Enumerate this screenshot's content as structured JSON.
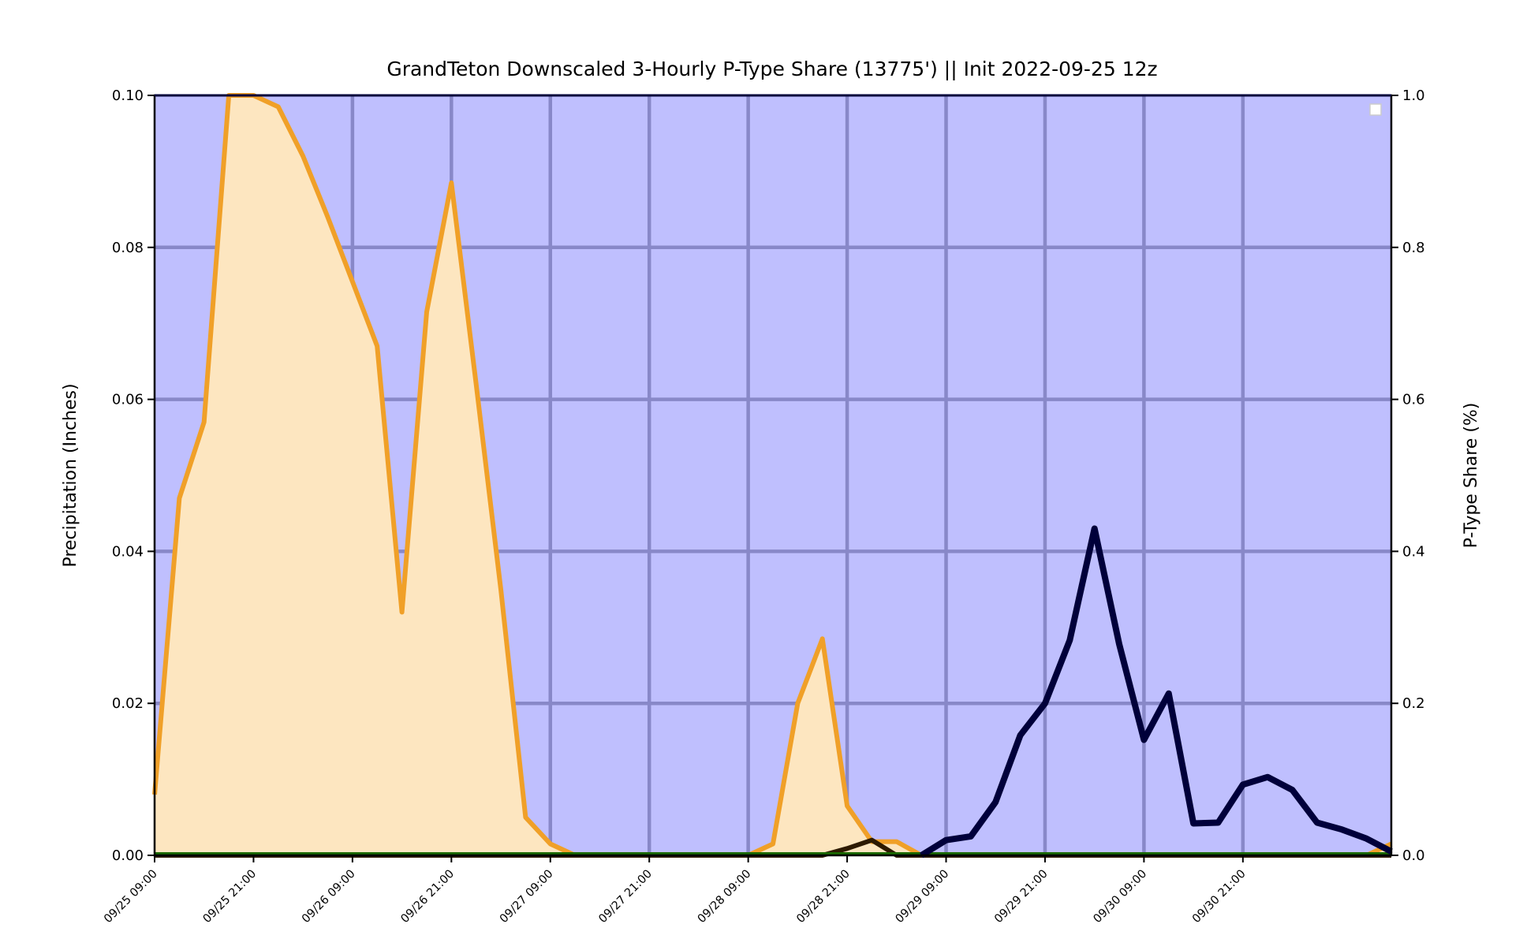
{
  "chart_data": {
    "type": "area",
    "title": "GrandTeton Downscaled 3-Hourly P-Type Share (13775') || Init 2022-09-25 12z",
    "ylabel": "Precipitation (Inches)",
    "y2label": "P-Type Share (%)",
    "ylim": [
      0,
      0.1
    ],
    "y2lim": [
      0,
      1.0
    ],
    "yticks": [
      "0.00",
      "0.02",
      "0.04",
      "0.06",
      "0.08",
      "0.10"
    ],
    "y2ticks": [
      "0.0",
      "0.2",
      "0.4",
      "0.6",
      "0.8",
      "1.0"
    ],
    "x_hours_step": 3,
    "x_start": "09/25 09:00",
    "x_end": "10/01 06:00",
    "xticks": [
      "09/25 09:00",
      "09/25 21:00",
      "09/26 09:00",
      "09/26 21:00",
      "09/27 09:00",
      "09/27 21:00",
      "09/28 09:00",
      "09/28 21:00",
      "09/29 09:00",
      "09/29 21:00",
      "09/30 09:00",
      "09/30 21:00"
    ],
    "grid": true,
    "legend": "top-right",
    "colors": {
      "background": "#bfbffe",
      "grid": "#8888c8",
      "precip_line": "#00003a",
      "share_fill": "#fde6c0",
      "share_line": "#f0a028",
      "other_line": "#2d1a00",
      "green_line": "#1a6a00"
    },
    "series": [
      {
        "key": "precip",
        "axis": "left",
        "values": [
          0,
          0,
          0,
          0,
          0,
          0,
          0,
          0,
          0,
          0,
          0,
          0,
          0,
          0,
          0,
          0,
          0,
          0,
          0,
          0,
          0,
          0,
          0,
          0,
          0,
          0,
          0,
          0,
          0,
          0,
          0,
          0,
          0.002,
          0.0025,
          0.007,
          0.0158,
          0.02,
          0.0283,
          0.043,
          0.0278,
          0.0152,
          0.0213,
          0.0042,
          0.0043,
          0.0093,
          0.0103,
          0.0086,
          0.0043,
          0.0034,
          0.0022,
          0.0005
        ]
      },
      {
        "key": "share",
        "axis": "right",
        "values": [
          0.08,
          0.47,
          0.57,
          1.0,
          1.0,
          0.985,
          0.92,
          0.84,
          0.755,
          0.67,
          0.32,
          0.715,
          0.885,
          0.62,
          0.35,
          0.05,
          0.015,
          0,
          0,
          0,
          0,
          0,
          0,
          0,
          0,
          0.015,
          0.2,
          0.285,
          0.065,
          0.018,
          0.018,
          0,
          0,
          0,
          0,
          0,
          0,
          0,
          0,
          0,
          0,
          0,
          0,
          0,
          0,
          0,
          0,
          0,
          0,
          0,
          0.015
        ]
      },
      {
        "key": "other",
        "axis": "right",
        "values": [
          0,
          0,
          0,
          0,
          0,
          0,
          0,
          0,
          0,
          0,
          0,
          0,
          0,
          0,
          0,
          0,
          0,
          0,
          0,
          0,
          0,
          0,
          0,
          0,
          0,
          0,
          0,
          0,
          0.009,
          0.02,
          0,
          0,
          0,
          0,
          0,
          0,
          0,
          0,
          0,
          0,
          0,
          0,
          0,
          0,
          0,
          0,
          0,
          0,
          0,
          0,
          0
        ]
      }
    ]
  }
}
